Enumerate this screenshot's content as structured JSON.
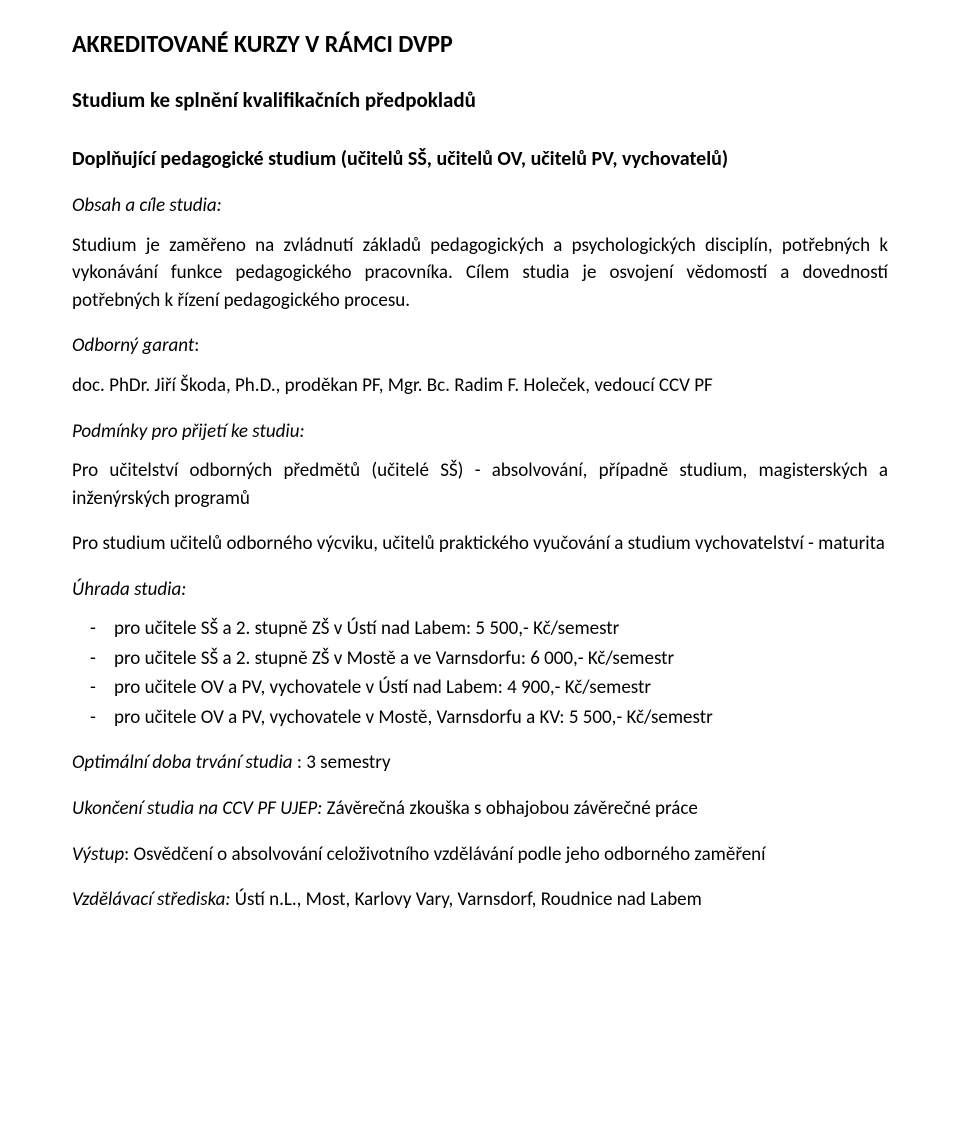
{
  "title": "AKREDITOVANÉ KURZY V RÁMCI DVPP",
  "subtitle": "Studium ke splnění kvalifikačních předpokladů",
  "section_heading": "Doplňující pedagogické studium (učitelů SŠ, učitelů OV, učitelů PV, vychovatelů)",
  "obsah": {
    "label": "Obsah a cíle studia:",
    "text": "Studium je zaměřeno na zvládnutí základů pedagogických a psychologických disciplín, potřebných k vykonávání funkce pedagogického pracovníka. Cílem studia je osvojení vědomostí a dovedností potřebných k řízení pedagogického procesu."
  },
  "garant": {
    "label": "Odborný garant",
    "colon": ":",
    "text": "doc. PhDr. Jiří  Škoda, Ph.D., proděkan PF, Mgr. Bc. Radim  F. Holeček, vedoucí CCV PF"
  },
  "podminky": {
    "label": "Podmínky pro přijetí ke studiu:",
    "p1": "Pro učitelství odborných předmětů (učitelé SŠ) - absolvování, případně studium, magisterských a inženýrských programů",
    "p2": "Pro studium učitelů odborného výcviku, učitelů praktického vyučování a studium vychovatelství - maturita"
  },
  "uhrada": {
    "label": "Úhrada studia:",
    "items": [
      "pro učitele SŠ a 2. stupně ZŠ v Ústí nad Labem: 5 500,-  Kč/semestr",
      "pro učitele SŠ a 2. stupně ZŠ v Mostě a ve Varnsdorfu: 6 000,- Kč/semestr",
      "pro učitele OV a PV, vychovatele v Ústí nad Labem: 4 900,- Kč/semestr",
      "pro učitele OV a PV, vychovatele v  Mostě, Varnsdorfu a KV: 5 500,- Kč/semestr"
    ]
  },
  "doba": {
    "label": "Optimální doba trvání studia",
    "value": " :  3 semestry"
  },
  "ukonceni": {
    "label": " Ukončení studia na CCV PF UJEP:",
    "value": "  Závěrečná zkouška s obhajobou závěrečné práce"
  },
  "vystup": {
    "label": "Výstup",
    "value": ": Osvědčení o absolvování celoživotního vzdělávání podle jeho odborného zaměření"
  },
  "strediska": {
    "label": "Vzdělávací střediska:",
    "value": "  Ústí n.L., Most, Karlovy Vary, Varnsdorf, Roudnice nad Labem"
  }
}
